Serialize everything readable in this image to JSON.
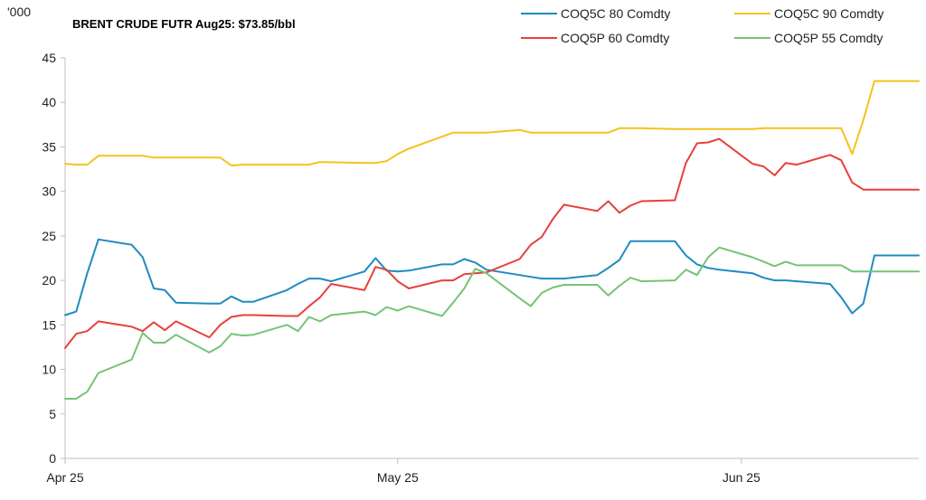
{
  "chart_data": {
    "type": "line",
    "title": "BRENT CRUDE FUTR  Aug25: $73.85/bbl",
    "y_unit_label": "'000",
    "ylim": [
      0,
      45
    ],
    "y_ticks": [
      "0",
      "5",
      "10",
      "15",
      "20",
      "25",
      "30",
      "35",
      "40",
      "45"
    ],
    "x_tick_labels": [
      "Apr 25",
      "May 25",
      "Jun 25"
    ],
    "x_range": [
      "2025-04-01",
      "2025-06-17"
    ],
    "x_ticks": [
      "2025-04-01",
      "2025-05-01",
      "2025-06-01"
    ],
    "grid": false,
    "legend_position": "top-right",
    "series": [
      {
        "name": "COQ5C 80 Comdty",
        "color": "#1F8BBF",
        "points": [
          [
            "2025-04-01",
            16.1
          ],
          [
            "2025-04-02",
            16.5
          ],
          [
            "2025-04-03",
            20.8
          ],
          [
            "2025-04-04",
            24.6
          ],
          [
            "2025-04-07",
            24.0
          ],
          [
            "2025-04-08",
            22.6
          ],
          [
            "2025-04-09",
            19.1
          ],
          [
            "2025-04-10",
            18.9
          ],
          [
            "2025-04-11",
            17.5
          ],
          [
            "2025-04-14",
            17.4
          ],
          [
            "2025-04-15",
            17.4
          ],
          [
            "2025-04-16",
            18.2
          ],
          [
            "2025-04-17",
            17.6
          ],
          [
            "2025-04-18",
            17.6
          ],
          [
            "2025-04-21",
            18.9
          ],
          [
            "2025-04-22",
            19.6
          ],
          [
            "2025-04-23",
            20.2
          ],
          [
            "2025-04-24",
            20.2
          ],
          [
            "2025-04-25",
            19.9
          ],
          [
            "2025-04-28",
            21.0
          ],
          [
            "2025-04-29",
            22.5
          ],
          [
            "2025-04-30",
            21.1
          ],
          [
            "2025-05-01",
            21.0
          ],
          [
            "2025-05-02",
            21.1
          ],
          [
            "2025-05-05",
            21.8
          ],
          [
            "2025-05-06",
            21.8
          ],
          [
            "2025-05-07",
            22.4
          ],
          [
            "2025-05-08",
            22.0
          ],
          [
            "2025-05-09",
            21.2
          ],
          [
            "2025-05-12",
            20.6
          ],
          [
            "2025-05-13",
            20.4
          ],
          [
            "2025-05-14",
            20.2
          ],
          [
            "2025-05-15",
            20.2
          ],
          [
            "2025-05-16",
            20.2
          ],
          [
            "2025-05-19",
            20.6
          ],
          [
            "2025-05-20",
            21.4
          ],
          [
            "2025-05-21",
            22.3
          ],
          [
            "2025-05-22",
            24.4
          ],
          [
            "2025-05-23",
            24.4
          ],
          [
            "2025-05-26",
            24.4
          ],
          [
            "2025-05-27",
            22.8
          ],
          [
            "2025-05-28",
            21.8
          ],
          [
            "2025-05-29",
            21.4
          ],
          [
            "2025-05-30",
            21.2
          ],
          [
            "2025-06-02",
            20.8
          ],
          [
            "2025-06-03",
            20.3
          ],
          [
            "2025-06-04",
            20.0
          ],
          [
            "2025-06-05",
            20.0
          ],
          [
            "2025-06-06",
            19.9
          ],
          [
            "2025-06-09",
            19.6
          ],
          [
            "2025-06-10",
            18.1
          ],
          [
            "2025-06-11",
            16.3
          ],
          [
            "2025-06-12",
            17.4
          ],
          [
            "2025-06-13",
            22.8
          ],
          [
            "2025-06-16",
            22.8
          ],
          [
            "2025-06-17",
            22.8
          ]
        ]
      },
      {
        "name": "COQ5P 60 Comdty",
        "color": "#E8403A",
        "points": [
          [
            "2025-04-01",
            12.4
          ],
          [
            "2025-04-02",
            14.0
          ],
          [
            "2025-04-03",
            14.3
          ],
          [
            "2025-04-04",
            15.4
          ],
          [
            "2025-04-07",
            14.8
          ],
          [
            "2025-04-08",
            14.3
          ],
          [
            "2025-04-09",
            15.3
          ],
          [
            "2025-04-10",
            14.4
          ],
          [
            "2025-04-11",
            15.4
          ],
          [
            "2025-04-14",
            13.6
          ],
          [
            "2025-04-15",
            15.0
          ],
          [
            "2025-04-16",
            15.9
          ],
          [
            "2025-04-17",
            16.1
          ],
          [
            "2025-04-18",
            16.1
          ],
          [
            "2025-04-21",
            16.0
          ],
          [
            "2025-04-22",
            16.0
          ],
          [
            "2025-04-23",
            17.1
          ],
          [
            "2025-04-24",
            18.1
          ],
          [
            "2025-04-25",
            19.6
          ],
          [
            "2025-04-28",
            18.9
          ],
          [
            "2025-04-29",
            21.5
          ],
          [
            "2025-04-30",
            21.2
          ],
          [
            "2025-05-01",
            19.9
          ],
          [
            "2025-05-02",
            19.1
          ],
          [
            "2025-05-05",
            20.0
          ],
          [
            "2025-05-06",
            20.0
          ],
          [
            "2025-05-07",
            20.7
          ],
          [
            "2025-05-08",
            20.8
          ],
          [
            "2025-05-09",
            20.9
          ],
          [
            "2025-05-12",
            22.4
          ],
          [
            "2025-05-13",
            24.0
          ],
          [
            "2025-05-14",
            24.9
          ],
          [
            "2025-05-15",
            26.9
          ],
          [
            "2025-05-16",
            28.5
          ],
          [
            "2025-05-19",
            27.8
          ],
          [
            "2025-05-20",
            28.9
          ],
          [
            "2025-05-21",
            27.6
          ],
          [
            "2025-05-22",
            28.4
          ],
          [
            "2025-05-23",
            28.9
          ],
          [
            "2025-05-26",
            29.0
          ],
          [
            "2025-05-27",
            33.2
          ],
          [
            "2025-05-28",
            35.4
          ],
          [
            "2025-05-29",
            35.5
          ],
          [
            "2025-05-30",
            35.9
          ],
          [
            "2025-06-02",
            33.1
          ],
          [
            "2025-06-03",
            32.8
          ],
          [
            "2025-06-04",
            31.8
          ],
          [
            "2025-06-05",
            33.2
          ],
          [
            "2025-06-06",
            33.0
          ],
          [
            "2025-06-09",
            34.1
          ],
          [
            "2025-06-10",
            33.5
          ],
          [
            "2025-06-11",
            31.0
          ],
          [
            "2025-06-12",
            30.2
          ],
          [
            "2025-06-13",
            30.2
          ],
          [
            "2025-06-16",
            30.2
          ],
          [
            "2025-06-17",
            30.2
          ]
        ]
      },
      {
        "name": "COQ5C 90 Comdty",
        "color": "#F5C21B",
        "points": [
          [
            "2025-04-01",
            33.1
          ],
          [
            "2025-04-02",
            33.0
          ],
          [
            "2025-04-03",
            33.0
          ],
          [
            "2025-04-04",
            34.0
          ],
          [
            "2025-04-07",
            34.0
          ],
          [
            "2025-04-08",
            34.0
          ],
          [
            "2025-04-09",
            33.8
          ],
          [
            "2025-04-10",
            33.8
          ],
          [
            "2025-04-14",
            33.8
          ],
          [
            "2025-04-15",
            33.8
          ],
          [
            "2025-04-16",
            32.9
          ],
          [
            "2025-04-17",
            33.0
          ],
          [
            "2025-04-23",
            33.0
          ],
          [
            "2025-04-24",
            33.3
          ],
          [
            "2025-04-28",
            33.2
          ],
          [
            "2025-04-29",
            33.2
          ],
          [
            "2025-04-30",
            33.4
          ],
          [
            "2025-05-01",
            34.2
          ],
          [
            "2025-05-02",
            34.8
          ],
          [
            "2025-05-06",
            36.6
          ],
          [
            "2025-05-09",
            36.6
          ],
          [
            "2025-05-12",
            36.9
          ],
          [
            "2025-05-13",
            36.6
          ],
          [
            "2025-05-20",
            36.6
          ],
          [
            "2025-05-21",
            37.1
          ],
          [
            "2025-05-23",
            37.1
          ],
          [
            "2025-05-26",
            37.0
          ],
          [
            "2025-06-02",
            37.0
          ],
          [
            "2025-06-03",
            37.1
          ],
          [
            "2025-06-10",
            37.1
          ],
          [
            "2025-06-11",
            34.2
          ],
          [
            "2025-06-12",
            38.0
          ],
          [
            "2025-06-13",
            42.4
          ],
          [
            "2025-06-17",
            42.4
          ]
        ]
      },
      {
        "name": "COQ5P 55 Comdty",
        "color": "#74C476",
        "points": [
          [
            "2025-04-01",
            6.7
          ],
          [
            "2025-04-02",
            6.7
          ],
          [
            "2025-04-03",
            7.5
          ],
          [
            "2025-04-04",
            9.6
          ],
          [
            "2025-04-07",
            11.1
          ],
          [
            "2025-04-08",
            14.1
          ],
          [
            "2025-04-09",
            13.0
          ],
          [
            "2025-04-10",
            13.0
          ],
          [
            "2025-04-11",
            13.9
          ],
          [
            "2025-04-14",
            11.9
          ],
          [
            "2025-04-15",
            12.6
          ],
          [
            "2025-04-16",
            14.0
          ],
          [
            "2025-04-17",
            13.8
          ],
          [
            "2025-04-18",
            13.9
          ],
          [
            "2025-04-21",
            15.0
          ],
          [
            "2025-04-22",
            14.3
          ],
          [
            "2025-04-23",
            15.9
          ],
          [
            "2025-04-24",
            15.4
          ],
          [
            "2025-04-25",
            16.1
          ],
          [
            "2025-04-28",
            16.5
          ],
          [
            "2025-04-29",
            16.1
          ],
          [
            "2025-04-30",
            17.0
          ],
          [
            "2025-05-01",
            16.6
          ],
          [
            "2025-05-02",
            17.1
          ],
          [
            "2025-05-05",
            16.0
          ],
          [
            "2025-05-06",
            17.5
          ],
          [
            "2025-05-07",
            19.1
          ],
          [
            "2025-05-08",
            21.3
          ],
          [
            "2025-05-09",
            20.8
          ],
          [
            "2025-05-12",
            18.0
          ],
          [
            "2025-05-13",
            17.1
          ],
          [
            "2025-05-14",
            18.6
          ],
          [
            "2025-05-15",
            19.2
          ],
          [
            "2025-05-16",
            19.5
          ],
          [
            "2025-05-19",
            19.5
          ],
          [
            "2025-05-20",
            18.3
          ],
          [
            "2025-05-21",
            19.4
          ],
          [
            "2025-05-22",
            20.3
          ],
          [
            "2025-05-23",
            19.9
          ],
          [
            "2025-05-26",
            20.0
          ],
          [
            "2025-05-27",
            21.2
          ],
          [
            "2025-05-28",
            20.6
          ],
          [
            "2025-05-29",
            22.6
          ],
          [
            "2025-05-30",
            23.7
          ],
          [
            "2025-06-02",
            22.6
          ],
          [
            "2025-06-03",
            22.1
          ],
          [
            "2025-06-04",
            21.6
          ],
          [
            "2025-06-05",
            22.1
          ],
          [
            "2025-06-06",
            21.7
          ],
          [
            "2025-06-09",
            21.7
          ],
          [
            "2025-06-10",
            21.7
          ],
          [
            "2025-06-11",
            21.0
          ],
          [
            "2025-06-12",
            21.0
          ],
          [
            "2025-06-13",
            21.0
          ],
          [
            "2025-06-16",
            21.0
          ],
          [
            "2025-06-17",
            21.0
          ]
        ]
      }
    ]
  }
}
